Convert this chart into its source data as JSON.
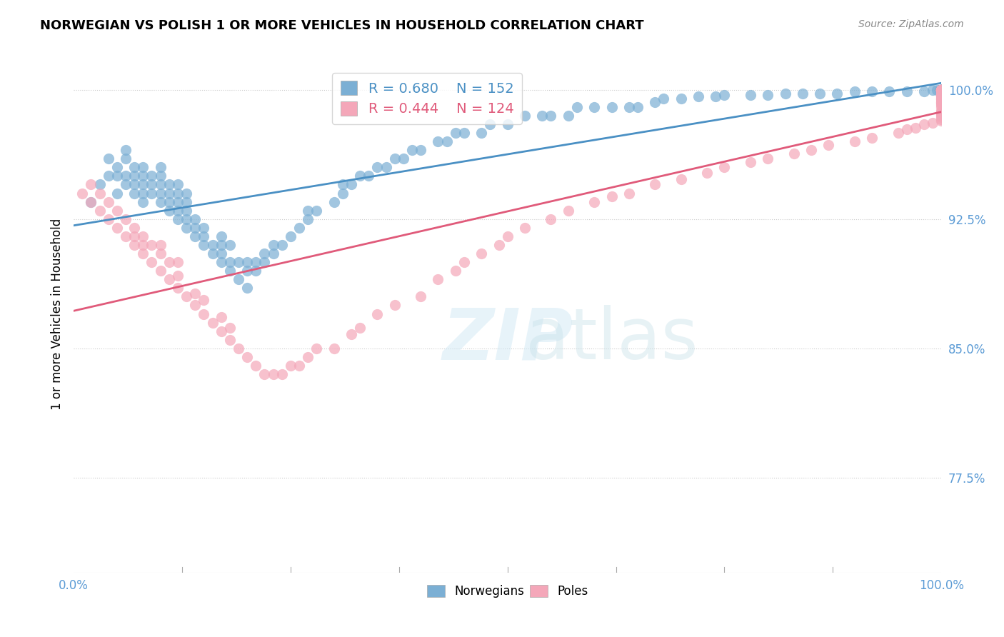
{
  "title": "NORWEGIAN VS POLISH 1 OR MORE VEHICLES IN HOUSEHOLD CORRELATION CHART",
  "source": "Source: ZipAtlas.com",
  "ylabel": "1 or more Vehicles in Household",
  "xlabel": "",
  "xlim": [
    0.0,
    1.0
  ],
  "ylim": [
    0.72,
    1.02
  ],
  "yticks": [
    0.775,
    0.85,
    0.925,
    1.0
  ],
  "ytick_labels": [
    "77.5%",
    "85.0%",
    "92.5%",
    "100.0%"
  ],
  "xticks": [
    0.0,
    0.125,
    0.25,
    0.375,
    0.5,
    0.625,
    0.75,
    0.875,
    1.0
  ],
  "xtick_labels": [
    "0.0%",
    "",
    "",
    "",
    "",
    "",
    "",
    "",
    "100.0%"
  ],
  "norwegian_R": 0.68,
  "norwegian_N": 152,
  "polish_R": 0.444,
  "polish_N": 124,
  "norwegian_color": "#7bafd4",
  "polish_color": "#f4a7b9",
  "norwegian_line_color": "#4a90c4",
  "polish_line_color": "#e05a7a",
  "legend_box_color": "#7bafd4",
  "legend_box_color2": "#f4a7b9",
  "watermark": "ZIPatlas",
  "background_color": "#ffffff",
  "grid_color": "#cccccc",
  "tick_label_color": "#5b9bd5",
  "norwegian_x": [
    0.02,
    0.03,
    0.04,
    0.04,
    0.05,
    0.05,
    0.05,
    0.06,
    0.06,
    0.06,
    0.06,
    0.07,
    0.07,
    0.07,
    0.07,
    0.08,
    0.08,
    0.08,
    0.08,
    0.08,
    0.09,
    0.09,
    0.09,
    0.1,
    0.1,
    0.1,
    0.1,
    0.1,
    0.11,
    0.11,
    0.11,
    0.11,
    0.12,
    0.12,
    0.12,
    0.12,
    0.12,
    0.13,
    0.13,
    0.13,
    0.13,
    0.13,
    0.14,
    0.14,
    0.14,
    0.15,
    0.15,
    0.15,
    0.16,
    0.16,
    0.17,
    0.17,
    0.17,
    0.17,
    0.18,
    0.18,
    0.18,
    0.19,
    0.19,
    0.2,
    0.2,
    0.2,
    0.21,
    0.21,
    0.22,
    0.22,
    0.23,
    0.23,
    0.24,
    0.25,
    0.26,
    0.27,
    0.27,
    0.28,
    0.3,
    0.31,
    0.31,
    0.32,
    0.33,
    0.34,
    0.35,
    0.36,
    0.37,
    0.38,
    0.39,
    0.4,
    0.42,
    0.43,
    0.44,
    0.45,
    0.47,
    0.48,
    0.5,
    0.52,
    0.54,
    0.55,
    0.57,
    0.58,
    0.6,
    0.62,
    0.64,
    0.65,
    0.67,
    0.68,
    0.7,
    0.72,
    0.74,
    0.75,
    0.78,
    0.8,
    0.82,
    0.84,
    0.86,
    0.88,
    0.9,
    0.92,
    0.94,
    0.96,
    0.98,
    0.99,
    0.995,
    0.998,
    0.999,
    1.0,
    1.0,
    1.0,
    1.0,
    1.0,
    1.0,
    1.0,
    1.0,
    1.0,
    1.0,
    1.0,
    1.0,
    1.0,
    1.0,
    1.0,
    1.0,
    1.0,
    1.0,
    1.0,
    1.0,
    1.0,
    1.0,
    1.0,
    1.0,
    1.0,
    1.0,
    1.0
  ],
  "norwegian_y": [
    0.935,
    0.945,
    0.95,
    0.96,
    0.94,
    0.95,
    0.955,
    0.945,
    0.95,
    0.96,
    0.965,
    0.94,
    0.945,
    0.95,
    0.955,
    0.935,
    0.94,
    0.945,
    0.95,
    0.955,
    0.94,
    0.945,
    0.95,
    0.935,
    0.94,
    0.945,
    0.95,
    0.955,
    0.93,
    0.935,
    0.94,
    0.945,
    0.925,
    0.93,
    0.935,
    0.94,
    0.945,
    0.92,
    0.925,
    0.93,
    0.935,
    0.94,
    0.915,
    0.92,
    0.925,
    0.91,
    0.915,
    0.92,
    0.905,
    0.91,
    0.9,
    0.905,
    0.91,
    0.915,
    0.895,
    0.9,
    0.91,
    0.89,
    0.9,
    0.885,
    0.895,
    0.9,
    0.895,
    0.9,
    0.9,
    0.905,
    0.905,
    0.91,
    0.91,
    0.915,
    0.92,
    0.925,
    0.93,
    0.93,
    0.935,
    0.94,
    0.945,
    0.945,
    0.95,
    0.95,
    0.955,
    0.955,
    0.96,
    0.96,
    0.965,
    0.965,
    0.97,
    0.97,
    0.975,
    0.975,
    0.975,
    0.98,
    0.98,
    0.985,
    0.985,
    0.985,
    0.985,
    0.99,
    0.99,
    0.99,
    0.99,
    0.99,
    0.993,
    0.995,
    0.995,
    0.996,
    0.996,
    0.997,
    0.997,
    0.997,
    0.998,
    0.998,
    0.998,
    0.998,
    0.999,
    0.999,
    0.999,
    0.999,
    0.999,
    1.0,
    1.0,
    1.0,
    1.0,
    1.0,
    1.0,
    1.0,
    1.0,
    1.0,
    1.0,
    1.0,
    1.0,
    1.0,
    1.0,
    1.0,
    1.0,
    1.0,
    1.0,
    1.0,
    1.0,
    1.0,
    1.0,
    1.0,
    1.0,
    1.0,
    1.0,
    1.0,
    1.0,
    1.0,
    1.0,
    1.0
  ],
  "polish_x": [
    0.01,
    0.02,
    0.02,
    0.03,
    0.03,
    0.04,
    0.04,
    0.05,
    0.05,
    0.06,
    0.06,
    0.07,
    0.07,
    0.07,
    0.08,
    0.08,
    0.08,
    0.09,
    0.09,
    0.1,
    0.1,
    0.1,
    0.11,
    0.11,
    0.12,
    0.12,
    0.12,
    0.13,
    0.14,
    0.14,
    0.15,
    0.15,
    0.16,
    0.17,
    0.17,
    0.18,
    0.18,
    0.19,
    0.2,
    0.21,
    0.22,
    0.23,
    0.24,
    0.25,
    0.26,
    0.27,
    0.28,
    0.3,
    0.32,
    0.33,
    0.35,
    0.37,
    0.4,
    0.42,
    0.44,
    0.45,
    0.47,
    0.49,
    0.5,
    0.52,
    0.55,
    0.57,
    0.6,
    0.62,
    0.64,
    0.67,
    0.7,
    0.73,
    0.75,
    0.78,
    0.8,
    0.83,
    0.85,
    0.87,
    0.9,
    0.92,
    0.95,
    0.96,
    0.97,
    0.98,
    0.99,
    1.0,
    1.0,
    1.0,
    1.0,
    1.0,
    1.0,
    1.0,
    1.0,
    1.0,
    1.0,
    1.0,
    1.0,
    1.0,
    1.0,
    1.0,
    1.0,
    1.0,
    1.0,
    1.0,
    1.0,
    1.0,
    1.0,
    1.0,
    1.0,
    1.0,
    1.0,
    1.0,
    1.0,
    1.0,
    1.0,
    1.0,
    1.0,
    1.0,
    1.0,
    1.0,
    1.0,
    1.0,
    1.0,
    1.0,
    1.0,
    1.0,
    1.0,
    1.0
  ],
  "polish_y": [
    0.94,
    0.935,
    0.945,
    0.93,
    0.94,
    0.925,
    0.935,
    0.92,
    0.93,
    0.915,
    0.925,
    0.91,
    0.915,
    0.92,
    0.905,
    0.91,
    0.915,
    0.9,
    0.91,
    0.895,
    0.905,
    0.91,
    0.89,
    0.9,
    0.885,
    0.892,
    0.9,
    0.88,
    0.875,
    0.882,
    0.87,
    0.878,
    0.865,
    0.86,
    0.868,
    0.855,
    0.862,
    0.85,
    0.845,
    0.84,
    0.835,
    0.835,
    0.835,
    0.84,
    0.84,
    0.845,
    0.85,
    0.85,
    0.858,
    0.862,
    0.87,
    0.875,
    0.88,
    0.89,
    0.895,
    0.9,
    0.905,
    0.91,
    0.915,
    0.92,
    0.925,
    0.93,
    0.935,
    0.938,
    0.94,
    0.945,
    0.948,
    0.952,
    0.955,
    0.958,
    0.96,
    0.963,
    0.965,
    0.968,
    0.97,
    0.972,
    0.975,
    0.977,
    0.978,
    0.98,
    0.981,
    0.982,
    0.983,
    0.984,
    0.985,
    0.986,
    0.987,
    0.988,
    0.99,
    0.991,
    0.992,
    0.993,
    0.993,
    0.994,
    0.995,
    0.995,
    0.996,
    0.996,
    0.997,
    0.997,
    0.998,
    0.998,
    0.999,
    0.999,
    0.999,
    1.0,
    1.0,
    1.0,
    1.0,
    1.0,
    1.0,
    1.0,
    1.0,
    1.0,
    1.0,
    1.0,
    1.0,
    1.0,
    1.0,
    1.0,
    1.0,
    1.0,
    1.0,
    1.0
  ]
}
